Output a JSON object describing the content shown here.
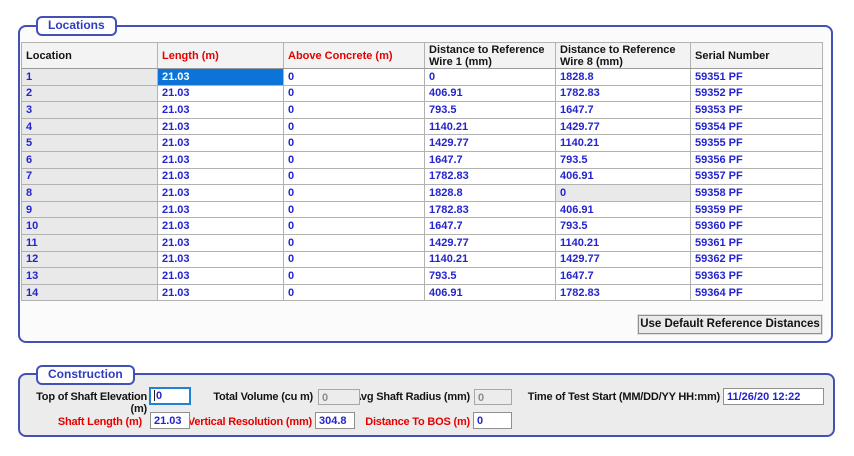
{
  "locations_panel": {
    "title": "Locations",
    "table": {
      "columns": [
        {
          "label": "Location",
          "color": "#141414"
        },
        {
          "label": "Length (m)",
          "color": "#e60000"
        },
        {
          "label": "Above Concrete (m)",
          "color": "#e60000"
        },
        {
          "label": "Distance to Reference Wire 1 (mm)",
          "color": "#141414"
        },
        {
          "label": "Distance to Reference Wire 8 (mm)",
          "color": "#141414"
        },
        {
          "label": "Serial Number",
          "color": "#141414"
        }
      ],
      "rows": [
        [
          "1",
          "21.03",
          "0",
          "0",
          "1828.8",
          "59351 PF"
        ],
        [
          "2",
          "21.03",
          "0",
          "406.91",
          "1782.83",
          "59352 PF"
        ],
        [
          "3",
          "21.03",
          "0",
          "793.5",
          "1647.7",
          "59353 PF"
        ],
        [
          "4",
          "21.03",
          "0",
          "1140.21",
          "1429.77",
          "59354 PF"
        ],
        [
          "5",
          "21.03",
          "0",
          "1429.77",
          "1140.21",
          "59355 PF"
        ],
        [
          "6",
          "21.03",
          "0",
          "1647.7",
          "793.5",
          "59356 PF"
        ],
        [
          "7",
          "21.03",
          "0",
          "1782.83",
          "406.91",
          "59357 PF"
        ],
        [
          "8",
          "21.03",
          "0",
          "1828.8",
          "0",
          "59358 PF"
        ],
        [
          "9",
          "21.03",
          "0",
          "1782.83",
          "406.91",
          "59359 PF"
        ],
        [
          "10",
          "21.03",
          "0",
          "1647.7",
          "793.5",
          "59360 PF"
        ],
        [
          "11",
          "21.03",
          "0",
          "1429.77",
          "1140.21",
          "59361 PF"
        ],
        [
          "12",
          "21.03",
          "0",
          "1140.21",
          "1429.77",
          "59362 PF"
        ],
        [
          "13",
          "21.03",
          "0",
          "793.5",
          "1647.7",
          "59363 PF"
        ],
        [
          "14",
          "21.03",
          "0",
          "406.91",
          "1782.83",
          "59364 PF"
        ]
      ],
      "selected_cell": {
        "row_index": 0,
        "column_index": 1
      },
      "gray_cell": {
        "row_index": 7,
        "column_index": 4
      }
    },
    "button_label": "Use Default Reference Distances"
  },
  "construction_panel": {
    "title": "Construction",
    "fields": [
      {
        "label": "Top of Shaft Elevation (m)",
        "value": "0",
        "state": "focused"
      },
      {
        "label": "Total Volume (cu m)",
        "value": "0",
        "state": "disabled"
      },
      {
        "label": "Avg Shaft Radius (mm)",
        "value": "0",
        "state": "disabled"
      },
      {
        "label": "Time of Test Start (MM/DD/YY HH:mm)",
        "value": "11/26/20 12:22",
        "state": "normal"
      },
      {
        "label": "Shaft Length (m)",
        "value": "21.03",
        "state": "normal"
      },
      {
        "label": "Vertical Resolution (mm)",
        "value": "304.8",
        "state": "normal"
      },
      {
        "label": "Distance To BOS (m)",
        "value": "0",
        "state": "normal"
      }
    ]
  },
  "colors": {
    "group_border": "#4351b5",
    "group_label_text": "#2e3cc0",
    "data_text_blue": "#2424cf",
    "required_label_red": "#e60000",
    "selection_blue": "#0c74d8",
    "panel_gray": "#ececec",
    "disabled_text": "#8b8b8b",
    "header_text": "#141414"
  }
}
